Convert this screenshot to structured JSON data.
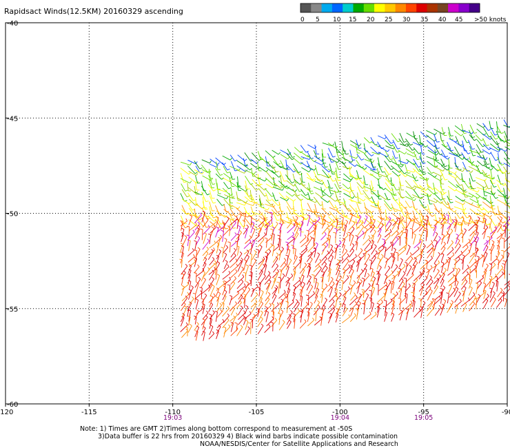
{
  "title": "Rapidsact Winds(12.5KM) 20160329 ascending",
  "colorbar": {
    "swatches": [
      "#555555",
      "#888888",
      "#00aaee",
      "#0066ff",
      "#00cccc",
      "#00aa00",
      "#66dd00",
      "#ffff00",
      "#ffc800",
      "#ff8800",
      "#ff4400",
      "#dd0000",
      "#aa3300",
      "#774422",
      "#cc00cc",
      "#8800cc",
      "#440088"
    ],
    "labels": [
      "0",
      "5",
      "10",
      "15",
      "20",
      "25",
      "30",
      "35",
      "40",
      "45",
      ">50 knots"
    ]
  },
  "map": {
    "lon_min": -120,
    "lon_max": -90,
    "lat_top": -40,
    "lat_bottom": -60,
    "x_ticks": [
      "-120",
      "-115",
      "-110",
      "-105",
      "-100",
      "-95",
      "-90"
    ],
    "x_tick_values": [
      -120,
      -115,
      -110,
      -105,
      -100,
      -95,
      -90
    ],
    "y_ticks": [
      "-40",
      "-45",
      "-50",
      "-55",
      "-60"
    ],
    "y_tick_values": [
      -40,
      -45,
      -50,
      -55,
      -60
    ],
    "gridlines": "dotted"
  },
  "times": [
    {
      "label": "19:03",
      "lon": -110
    },
    {
      "label": "19:04",
      "lon": -100
    },
    {
      "label": "19:05",
      "lon": -95
    }
  ],
  "notes": {
    "line1": "Note: 1) Times are GMT 2)Times along bottom correspond to measurement at -50S",
    "line2": "3)Data buffer is 22 hrs from 20160329 4) Black wind barbs indicate possible contamination",
    "line3": "NOAA/NESDIS/Center for Satellite Applications and Research"
  },
  "swath": {
    "lon_start": -109.5,
    "lon_end": -89.5,
    "lat_north_west": -47.3,
    "lat_north_east": -45.0,
    "lat_south_west": -56.8,
    "lat_south_east": -55.0
  },
  "wind_zones": [
    {
      "lat_from": -45.0,
      "lat_to": -47.5,
      "colors": [
        "#00aa00",
        "#008800",
        "#66dd00",
        "#0044ff"
      ]
    },
    {
      "lat_from": -47.5,
      "lat_to": -49.3,
      "colors": [
        "#66dd00",
        "#aacc00",
        "#ffff00",
        "#00aa00"
      ]
    },
    {
      "lat_from": -49.3,
      "lat_to": -50.5,
      "colors": [
        "#ffc800",
        "#ff8800",
        "#ffff00"
      ]
    },
    {
      "lat_from": -50.5,
      "lat_to": -52.0,
      "colors": [
        "#ff8800",
        "#ff4400",
        "#dd0000",
        "#cc00cc"
      ]
    },
    {
      "lat_from": -52.0,
      "lat_to": -57.0,
      "colors": [
        "#dd0000",
        "#ff4400",
        "#ff8800",
        "#dd0000"
      ]
    }
  ]
}
